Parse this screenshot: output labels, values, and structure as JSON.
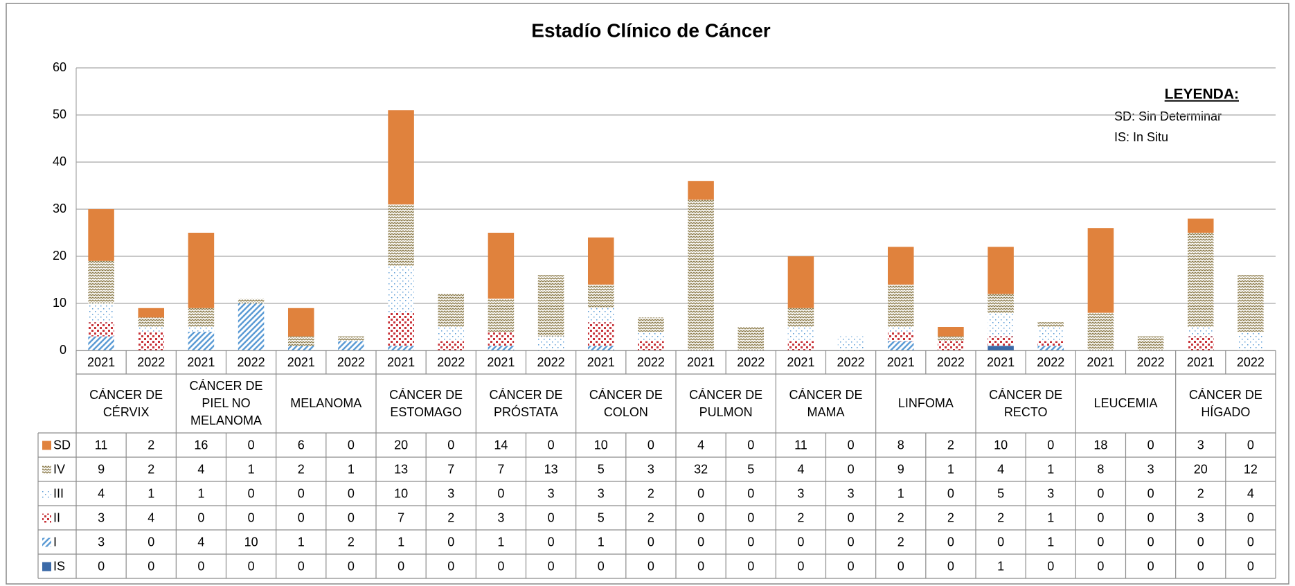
{
  "chart_data": {
    "type": "bar",
    "stacked": true,
    "title": "Estadío Clínico de Cáncer",
    "categories": [
      "2021",
      "2022",
      "2021",
      "2022",
      "2021",
      "2022",
      "2021",
      "2022",
      "2021",
      "2022",
      "2021",
      "2022",
      "2021",
      "2022",
      "2021",
      "2022",
      "2021",
      "2022",
      "2021",
      "2022",
      "2021",
      "2022",
      "2021",
      "2022"
    ],
    "groups": [
      "CÁNCER DE CÉRVIX",
      "CÁNCER DE PIEL NO MELANOMA",
      "MELANOMA",
      "CÁNCER DE ESTOMAGO",
      "CÁNCER DE PRÓSTATA",
      "CÁNCER DE COLON",
      "CÁNCER DE PULMON",
      "CÁNCER DE MAMA",
      "LINFOMA",
      "CÁNCER DE RECTO",
      "LEUCEMIA",
      "CÁNCER DE HÍGADO"
    ],
    "series": [
      {
        "name": "IS",
        "color": "#3b6aa8",
        "pattern": "solid",
        "values": [
          0,
          0,
          0,
          0,
          0,
          0,
          0,
          0,
          0,
          0,
          0,
          0,
          0,
          0,
          0,
          0,
          0,
          0,
          1,
          0,
          0,
          0,
          0,
          0
        ]
      },
      {
        "name": "I",
        "color": "#5b9bd5",
        "pattern": "stripes",
        "values": [
          3,
          0,
          4,
          10,
          1,
          2,
          1,
          0,
          1,
          0,
          1,
          0,
          0,
          0,
          0,
          0,
          2,
          0,
          0,
          1,
          0,
          0,
          0,
          0
        ]
      },
      {
        "name": "II",
        "color": "#c8343a",
        "pattern": "dots",
        "values": [
          3,
          4,
          0,
          0,
          0,
          0,
          7,
          2,
          3,
          0,
          5,
          2,
          0,
          0,
          2,
          0,
          2,
          2,
          2,
          1,
          0,
          0,
          3,
          0
        ]
      },
      {
        "name": "III",
        "color": "#5b9bd5",
        "pattern": "finedots",
        "values": [
          4,
          1,
          1,
          0,
          0,
          0,
          10,
          3,
          0,
          3,
          3,
          2,
          0,
          0,
          3,
          3,
          1,
          0,
          5,
          3,
          0,
          0,
          2,
          4
        ]
      },
      {
        "name": "IV",
        "color": "#8c7b4a",
        "pattern": "wave",
        "values": [
          9,
          2,
          4,
          1,
          2,
          1,
          13,
          7,
          7,
          13,
          5,
          3,
          32,
          5,
          4,
          0,
          9,
          1,
          4,
          1,
          8,
          3,
          20,
          12
        ]
      },
      {
        "name": "SD",
        "color": "#e0823d",
        "pattern": "solid",
        "values": [
          11,
          2,
          16,
          0,
          6,
          0,
          20,
          0,
          14,
          0,
          10,
          0,
          4,
          0,
          11,
          0,
          8,
          2,
          10,
          0,
          18,
          0,
          3,
          0
        ]
      }
    ],
    "ylim": [
      0,
      60
    ],
    "yticks": [
      0,
      10,
      20,
      30,
      40,
      50,
      60
    ],
    "grid": true,
    "legend_note": {
      "title": "LEYENDA:",
      "lines": [
        "SD: Sin Determinar",
        "IS: In Situ"
      ]
    }
  }
}
